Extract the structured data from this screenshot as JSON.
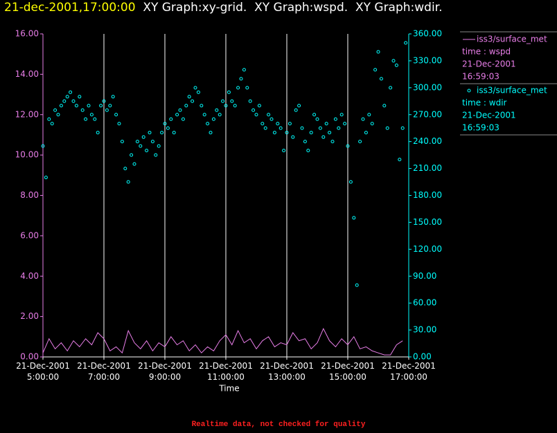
{
  "chart_data": {
    "type": "xy",
    "timestamp": "21-dec-2001,17:00:00",
    "title": "XY Graph:xy-grid.  XY Graph:wspd.  XY Graph:wdir.",
    "xlabel": "Time",
    "footnote": "Realtime data, not checked for quality",
    "xlim": [
      5,
      17
    ],
    "xticks": [
      {
        "value": 5,
        "label": "21-Dec-2001\n5:00:00"
      },
      {
        "value": 7,
        "label": "21-Dec-2001\n7:00:00"
      },
      {
        "value": 9,
        "label": "21-Dec-2001\n9:00:00"
      },
      {
        "value": 11,
        "label": "21-Dec-2001\n11:00:00"
      },
      {
        "value": 13,
        "label": "21-Dec-2001\n13:00:00"
      },
      {
        "value": 15,
        "label": "21-Dec-2001\n15:00:00"
      },
      {
        "value": 17,
        "label": "21-Dec-2001\n17:00:00"
      }
    ],
    "xgrid": true,
    "ylim": [
      0,
      16
    ],
    "yticks": [
      {
        "value": 0,
        "label": "0.00"
      },
      {
        "value": 2,
        "label": "2.00"
      },
      {
        "value": 4,
        "label": "4.00"
      },
      {
        "value": 6,
        "label": "6.00"
      },
      {
        "value": 8,
        "label": "8.00"
      },
      {
        "value": 10,
        "label": "10.00"
      },
      {
        "value": 12,
        "label": "12.00"
      },
      {
        "value": 14,
        "label": "14.00"
      },
      {
        "value": 16,
        "label": "16.00"
      }
    ],
    "y2lim": [
      0,
      360
    ],
    "y2ticks": [
      {
        "value": 0,
        "label": "0.00"
      },
      {
        "value": 30,
        "label": "30.00"
      },
      {
        "value": 60,
        "label": "60.00"
      },
      {
        "value": 90,
        "label": "90.00"
      },
      {
        "value": 120,
        "label": "120.00"
      },
      {
        "value": 150,
        "label": "150.00"
      },
      {
        "value": 180,
        "label": "180.00"
      },
      {
        "value": 210,
        "label": "210.00"
      },
      {
        "value": 240,
        "label": "240.00"
      },
      {
        "value": 270,
        "label": "270.00"
      },
      {
        "value": 300,
        "label": "300.00"
      },
      {
        "value": 330,
        "label": "330.00"
      },
      {
        "value": 360,
        "label": "360.00"
      }
    ],
    "series": [
      {
        "name": "iss3/surface_met",
        "details": [
          "time : wspd",
          "21-Dec-2001",
          "16:59:03"
        ],
        "color": "#e87ee8",
        "style": "line",
        "axis": "y",
        "x": [
          5,
          5.2,
          5.4,
          5.6,
          5.8,
          6,
          6.2,
          6.4,
          6.6,
          6.8,
          7,
          7.2,
          7.4,
          7.6,
          7.8,
          8,
          8.2,
          8.4,
          8.6,
          8.8,
          9,
          9.2,
          9.4,
          9.6,
          9.8,
          10,
          10.2,
          10.4,
          10.6,
          10.8,
          11,
          11.2,
          11.4,
          11.6,
          11.8,
          12,
          12.2,
          12.4,
          12.6,
          12.8,
          13,
          13.2,
          13.4,
          13.6,
          13.8,
          14,
          14.2,
          14.4,
          14.6,
          14.8,
          15,
          15.2,
          15.4,
          15.6,
          15.8,
          16,
          16.2,
          16.4,
          16.6,
          16.8
        ],
        "values": [
          0.2,
          0.9,
          0.4,
          0.7,
          0.3,
          0.8,
          0.5,
          0.9,
          0.6,
          1.2,
          0.9,
          0.3,
          0.5,
          0.2,
          1.3,
          0.7,
          0.4,
          0.8,
          0.3,
          0.7,
          0.5,
          1.0,
          0.6,
          0.8,
          0.3,
          0.6,
          0.2,
          0.5,
          0.3,
          0.8,
          1.1,
          0.6,
          1.3,
          0.7,
          0.9,
          0.4,
          0.8,
          1.0,
          0.5,
          0.7,
          0.6,
          1.2,
          0.8,
          0.9,
          0.4,
          0.7,
          1.4,
          0.8,
          0.5,
          0.9,
          0.6,
          1.0,
          0.4,
          0.5,
          0.3,
          0.2,
          0.1,
          0.1,
          0.6,
          0.8
        ]
      },
      {
        "name": "iss3/surface_met",
        "details": [
          "time : wdir",
          "21-Dec-2001",
          "16:59:03"
        ],
        "color": "#00ffff",
        "style": "scatter",
        "axis": "y2",
        "x": [
          5,
          5.1,
          5.2,
          5.3,
          5.4,
          5.5,
          5.6,
          5.7,
          5.8,
          5.9,
          6,
          6.1,
          6.2,
          6.3,
          6.4,
          6.5,
          6.6,
          6.7,
          6.8,
          6.9,
          7,
          7.1,
          7.2,
          7.3,
          7.4,
          7.5,
          7.6,
          7.7,
          7.8,
          7.9,
          8,
          8.1,
          8.2,
          8.3,
          8.4,
          8.5,
          8.6,
          8.7,
          8.8,
          8.9,
          9,
          9.1,
          9.2,
          9.3,
          9.4,
          9.5,
          9.6,
          9.7,
          9.8,
          9.9,
          10,
          10.1,
          10.2,
          10.3,
          10.4,
          10.5,
          10.6,
          10.7,
          10.8,
          10.9,
          11,
          11.1,
          11.2,
          11.3,
          11.4,
          11.5,
          11.6,
          11.7,
          11.8,
          11.9,
          12,
          12.1,
          12.2,
          12.3,
          12.4,
          12.5,
          12.6,
          12.7,
          12.8,
          12.9,
          13,
          13.1,
          13.2,
          13.3,
          13.4,
          13.5,
          13.6,
          13.7,
          13.8,
          13.9,
          14,
          14.1,
          14.2,
          14.3,
          14.4,
          14.5,
          14.6,
          14.7,
          14.8,
          14.9,
          15,
          15.1,
          15.2,
          15.3,
          15.4,
          15.5,
          15.6,
          15.7,
          15.8,
          15.9,
          16,
          16.1,
          16.2,
          16.3,
          16.4,
          16.5,
          16.6,
          16.7,
          16.8,
          16.9
        ],
        "values": [
          235,
          200,
          265,
          260,
          275,
          270,
          280,
          285,
          290,
          295,
          285,
          280,
          290,
          275,
          265,
          280,
          270,
          265,
          250,
          280,
          285,
          275,
          280,
          290,
          270,
          260,
          240,
          210,
          195,
          225,
          215,
          240,
          235,
          245,
          230,
          250,
          240,
          225,
          235,
          250,
          260,
          255,
          265,
          250,
          270,
          275,
          265,
          280,
          290,
          285,
          300,
          295,
          280,
          270,
          260,
          250,
          265,
          275,
          270,
          285,
          280,
          295,
          285,
          280,
          300,
          310,
          320,
          300,
          285,
          275,
          270,
          280,
          260,
          255,
          270,
          265,
          250,
          260,
          255,
          230,
          250,
          260,
          245,
          275,
          280,
          255,
          240,
          230,
          250,
          270,
          265,
          255,
          245,
          260,
          250,
          240,
          265,
          255,
          270,
          260,
          235,
          195,
          155,
          80,
          240,
          265,
          250,
          270,
          260,
          320,
          340,
          310,
          280,
          255,
          300,
          330,
          325,
          220,
          255,
          350
        ]
      }
    ]
  }
}
